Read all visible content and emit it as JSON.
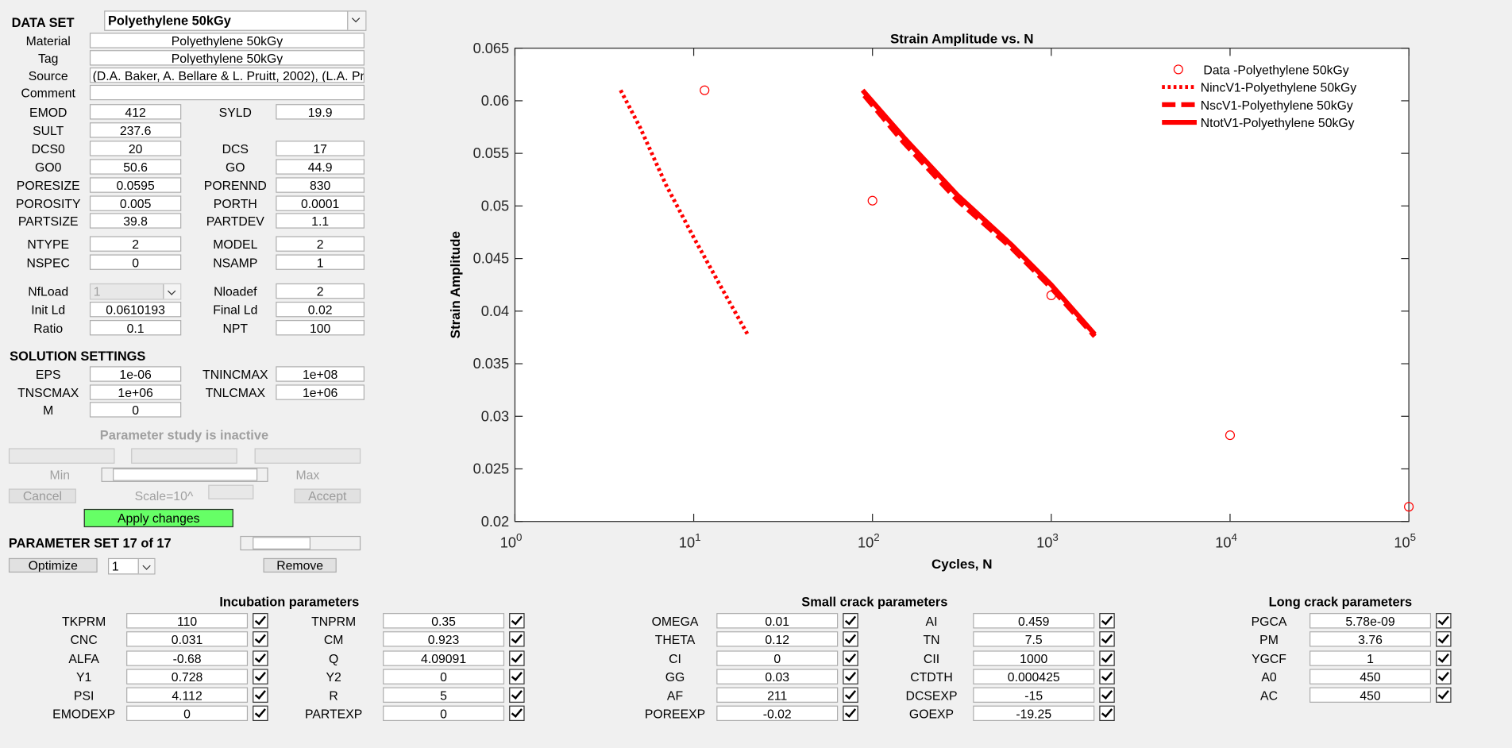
{
  "data_set": {
    "label": "DATA SET",
    "value": "Polyethylene 50kGy"
  },
  "info": [
    {
      "label": "Material",
      "value": "Polyethylene 50kGy"
    },
    {
      "label": "Tag",
      "value": "Polyethylene 50kGy"
    },
    {
      "label": "Source",
      "value": "(D.A. Baker, A. Bellare & L. Pruitt, 2002), (L.A. Pru"
    },
    {
      "label": "Comment"
    }
  ],
  "properties": [
    {
      "left": {
        "label": "EMOD",
        "value": "412"
      },
      "right": {
        "label": "SYLD",
        "value": "19.9"
      }
    },
    {
      "left": {
        "label": "SULT",
        "value": "237.6"
      }
    },
    {
      "left": {
        "label": "DCS0",
        "value": "20"
      },
      "right": {
        "label": "DCS",
        "value": "17"
      }
    },
    {
      "left": {
        "label": "GO0",
        "value": "50.6"
      },
      "right": {
        "label": "GO",
        "value": "44.9"
      }
    },
    {
      "left": {
        "label": "PORESIZE",
        "value": "0.0595"
      },
      "right": {
        "label": "PORENND",
        "value": "830"
      }
    },
    {
      "left": {
        "label": "POROSITY",
        "value": "0.005"
      },
      "right": {
        "label": "PORTH",
        "value": "0.0001"
      }
    },
    {
      "left": {
        "label": "PARTSIZE",
        "value": "39.8"
      },
      "right": {
        "label": "PARTDEV",
        "value": "1.1"
      }
    },
    {
      "left": {
        "label": "NTYPE",
        "value": "2"
      },
      "right": {
        "label": "MODEL",
        "value": "2"
      }
    },
    {
      "left": {
        "label": "NSPEC",
        "value": "0"
      },
      "right": {
        "label": "NSAMP",
        "value": "1"
      }
    },
    {
      "left": {
        "label": "NfLoad",
        "value": "1",
        "disabled": true
      },
      "right": {
        "label": "Nloadef",
        "value": "2"
      }
    },
    {
      "left": {
        "label": "Init Ld",
        "value": "0.0610193"
      },
      "right": {
        "label": "Final Ld",
        "value": "0.02"
      }
    },
    {
      "left": {
        "label": "Ratio",
        "value": "0.1"
      },
      "right": {
        "label": "NPT",
        "value": "100"
      }
    }
  ],
  "solution": {
    "title": "SOLUTION SETTINGS",
    "rows": [
      {
        "left": {
          "label": "EPS",
          "value": "1e-06"
        },
        "right": {
          "label": "TNINCMAX",
          "value": "1e+08"
        }
      },
      {
        "left": {
          "label": "TNSCMAX",
          "value": "1e+06"
        },
        "right": {
          "label": "TNLCMAX",
          "value": "1e+06"
        }
      },
      {
        "left": {
          "label": "M",
          "value": "0"
        }
      }
    ]
  },
  "parameter_study": {
    "status": "Parameter study is inactive",
    "min": "Min",
    "max": "Max",
    "cancel": "Cancel",
    "scale": "Scale=10^",
    "accept": "Accept"
  },
  "apply": "Apply changes",
  "parameter_set": {
    "title": "PARAMETER SET 17 of 17",
    "optimize": "Optimize",
    "selection": "1",
    "remove": "Remove"
  },
  "groups": [
    {
      "title": "Incubation parameters",
      "columns": [
        [
          {
            "label": "TKPRM",
            "value": "110"
          },
          {
            "label": "CNC",
            "value": "0.031"
          },
          {
            "label": "ALFA",
            "value": "-0.68"
          },
          {
            "label": "Y1",
            "value": "0.728"
          },
          {
            "label": "PSI",
            "value": "4.112"
          },
          {
            "label": "EMODEXP",
            "value": "0"
          }
        ],
        [
          {
            "label": "TNPRM",
            "value": "0.35"
          },
          {
            "label": "CM",
            "value": "0.923"
          },
          {
            "label": "Q",
            "value": "4.09091"
          },
          {
            "label": "Y2",
            "value": "0"
          },
          {
            "label": "R",
            "value": "5"
          },
          {
            "label": "PARTEXP",
            "value": "0"
          }
        ]
      ]
    },
    {
      "title": "Small crack parameters",
      "columns": [
        [
          {
            "label": "OMEGA",
            "value": "0.01"
          },
          {
            "label": "THETA",
            "value": "0.12"
          },
          {
            "label": "CI",
            "value": "0"
          },
          {
            "label": "GG",
            "value": "0.03"
          },
          {
            "label": "AF",
            "value": "211"
          },
          {
            "label": "POREEXP",
            "value": "-0.02"
          }
        ],
        [
          {
            "label": "AI",
            "value": "0.459"
          },
          {
            "label": "TN",
            "value": "7.5"
          },
          {
            "label": "CII",
            "value": "1000"
          },
          {
            "label": "CTDTH",
            "value": "0.000425"
          },
          {
            "label": "DCSEXP",
            "value": "-15"
          },
          {
            "label": "GOEXP",
            "value": "-19.25"
          }
        ]
      ]
    },
    {
      "title": "Long crack parameters",
      "columns": [
        [
          {
            "label": "PGCA",
            "value": "5.78e-09"
          },
          {
            "label": "PM",
            "value": "3.76"
          },
          {
            "label": "YGCF",
            "value": "1"
          },
          {
            "label": "A0",
            "value": "450"
          },
          {
            "label": "AC",
            "value": "450"
          }
        ]
      ]
    }
  ],
  "chart_data": {
    "type": "line",
    "title": "Strain Amplitude vs. N",
    "x_label": "Cycles, N",
    "y_label": "Strain Amplitude",
    "log_x": true,
    "xlim": [
      1,
      100000
    ],
    "xticks": [
      {
        "value": 1,
        "label": "10",
        "exponent": "0"
      },
      {
        "value": 10,
        "label": "10",
        "exponent": "1"
      },
      {
        "value": 100,
        "label": "10",
        "exponent": "2"
      },
      {
        "value": 1000,
        "label": "10",
        "exponent": "3"
      },
      {
        "value": 10000,
        "label": "10",
        "exponent": "4"
      },
      {
        "value": 100000,
        "label": "10",
        "exponent": "5"
      }
    ],
    "ylim": [
      0.02,
      0.065
    ],
    "yticks": [
      0.02,
      0.025,
      0.03,
      0.035,
      0.04,
      0.045,
      0.05,
      0.055,
      0.06,
      0.065
    ],
    "legend": "upper right",
    "series": [
      {
        "name": "Data -Polyethylene 50kGy",
        "color": "#ff0000",
        "style": "markers",
        "x": [
          11.5,
          100,
          1000,
          10000,
          100000
        ],
        "values": [
          0.061,
          0.0505,
          0.0415,
          0.0282,
          0.0214
        ]
      },
      {
        "name": "NincV1-Polyethylene 50kGy",
        "color": "#ff0000",
        "style": "dotted",
        "x": [
          3.9,
          5,
          7,
          10,
          14,
          20
        ],
        "values": [
          0.061,
          0.0575,
          0.052,
          0.047,
          0.0425,
          0.0378
        ]
      },
      {
        "name": "NscV1-Polyethylene 50kGy",
        "color": "#ff0000",
        "style": "dashed",
        "x": [
          90,
          150,
          300,
          600,
          1000,
          1750
        ],
        "values": [
          0.0605,
          0.056,
          0.0505,
          0.046,
          0.0422,
          0.0376
        ]
      },
      {
        "name": "NtotV1-Polyethylene 50kGy",
        "color": "#ff0000",
        "style": "solid",
        "x": [
          88,
          150,
          300,
          600,
          1000,
          1750
        ],
        "values": [
          0.061,
          0.0565,
          0.051,
          0.0463,
          0.0425,
          0.0378
        ]
      }
    ]
  }
}
